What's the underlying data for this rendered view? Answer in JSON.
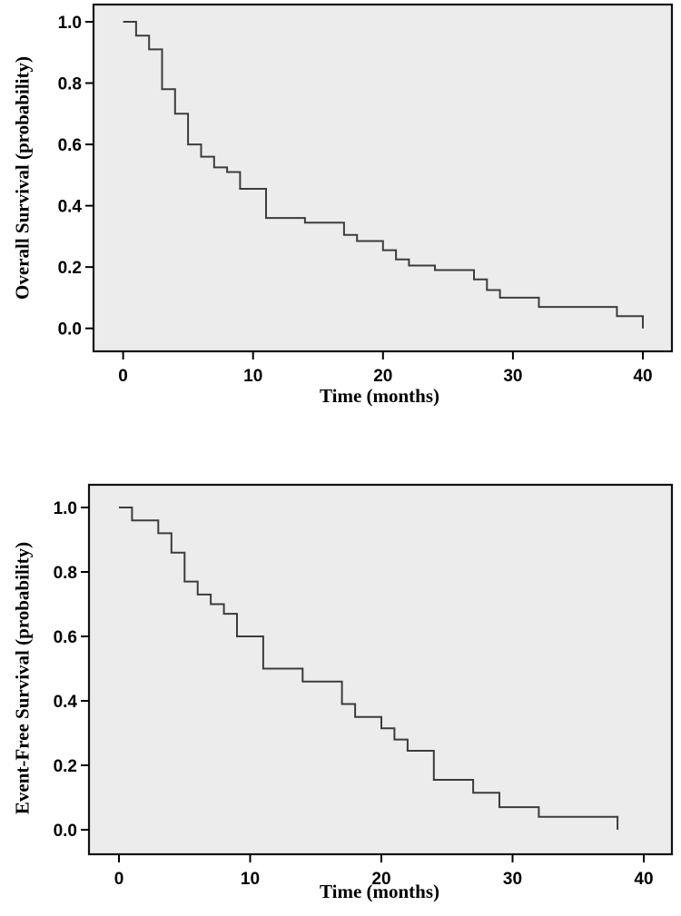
{
  "page": {
    "background": "#ffffff",
    "description": "Two Kaplan-Meier survival step plots stacked vertically"
  },
  "chart_data": [
    {
      "type": "line",
      "subtype": "kaplan-meier-step",
      "title": "",
      "xlabel": "Time (months)",
      "ylabel": "Overall Survival (probability)",
      "x_ticks": {
        "values": [
          0,
          10,
          20,
          30,
          40
        ],
        "labels": [
          "0",
          "10",
          "20",
          "30",
          "40"
        ]
      },
      "y_ticks": {
        "values": [
          1.0,
          0.8,
          0.6,
          0.4,
          0.2,
          0.0
        ],
        "labels": [
          "1.0",
          "0.8",
          "0.6",
          "0.4",
          "0.2",
          "0.0"
        ]
      },
      "xlim": [
        -2.3,
        42.2
      ],
      "ylim": [
        -0.07,
        1.06
      ],
      "grid": false,
      "legend": "none",
      "plot_bg": "#ececec",
      "frame_color": "#111111",
      "series": [
        {
          "name": "Overall survival",
          "color": "#3c3c3c",
          "steps_format": "[time_months, survival_probability_from_this_time]",
          "steps": [
            [
              0,
              1.0
            ],
            [
              1,
              0.955
            ],
            [
              2,
              0.91
            ],
            [
              3,
              0.78
            ],
            [
              4,
              0.7
            ],
            [
              5,
              0.6
            ],
            [
              6,
              0.56
            ],
            [
              7,
              0.525
            ],
            [
              8,
              0.51
            ],
            [
              9,
              0.455
            ],
            [
              11,
              0.36
            ],
            [
              14,
              0.345
            ],
            [
              17,
              0.305
            ],
            [
              18,
              0.285
            ],
            [
              20,
              0.255
            ],
            [
              21,
              0.225
            ],
            [
              22,
              0.205
            ],
            [
              24,
              0.19
            ],
            [
              27,
              0.16
            ],
            [
              28,
              0.125
            ],
            [
              29,
              0.1
            ],
            [
              32,
              0.07
            ],
            [
              38,
              0.04
            ],
            [
              40,
              0.0
            ]
          ]
        }
      ]
    },
    {
      "type": "line",
      "subtype": "kaplan-meier-step",
      "title": "",
      "xlabel": "Time (months)",
      "ylabel": "Event-Free Survival (probability)",
      "x_ticks": {
        "values": [
          0,
          10,
          20,
          30,
          40
        ],
        "labels": [
          "0",
          "10",
          "20",
          "30",
          "40"
        ]
      },
      "y_ticks": {
        "values": [
          1.0,
          0.8,
          0.6,
          0.4,
          0.2,
          0.0
        ],
        "labels": [
          "1.0",
          "0.8",
          "0.6",
          "0.4",
          "0.2",
          "0.0"
        ]
      },
      "xlim": [
        -2.3,
        42.2
      ],
      "ylim": [
        -0.08,
        1.07
      ],
      "grid": false,
      "legend": "none",
      "plot_bg": "#ececec",
      "frame_color": "#111111",
      "series": [
        {
          "name": "Event-free survival",
          "color": "#3c3c3c",
          "steps_format": "[time_months, survival_probability_from_this_time]",
          "steps": [
            [
              0,
              1.0
            ],
            [
              1,
              0.96
            ],
            [
              3,
              0.92
            ],
            [
              4,
              0.86
            ],
            [
              5,
              0.77
            ],
            [
              6,
              0.73
            ],
            [
              7,
              0.7
            ],
            [
              8,
              0.67
            ],
            [
              9,
              0.6
            ],
            [
              11,
              0.5
            ],
            [
              14,
              0.46
            ],
            [
              17,
              0.39
            ],
            [
              18,
              0.35
            ],
            [
              20,
              0.315
            ],
            [
              21,
              0.28
            ],
            [
              22,
              0.245
            ],
            [
              24,
              0.155
            ],
            [
              27,
              0.115
            ],
            [
              29,
              0.07
            ],
            [
              32,
              0.04
            ],
            [
              38,
              0.0
            ]
          ]
        }
      ]
    }
  ]
}
